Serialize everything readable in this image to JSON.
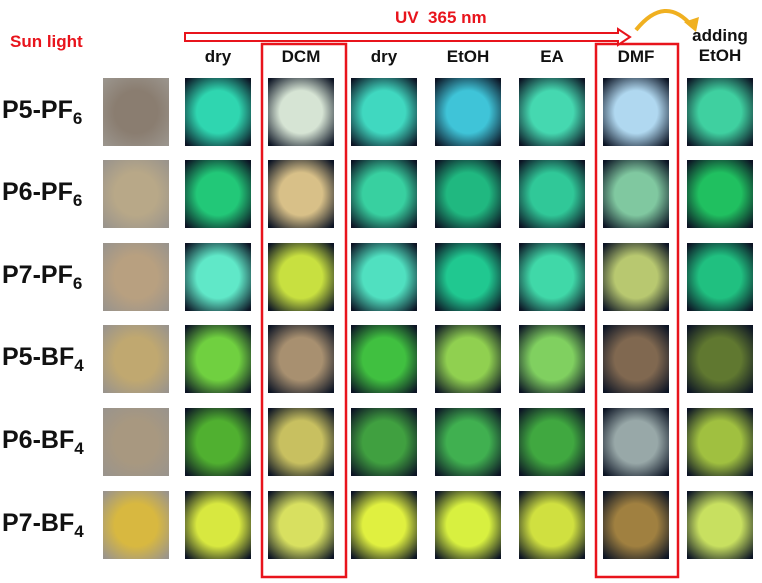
{
  "annotations": {
    "sun_light": "Sun light",
    "uv": "UV  365 nm"
  },
  "columns": [
    {
      "lines": [
        "dry"
      ]
    },
    {
      "lines": [
        "DCM"
      ]
    },
    {
      "lines": [
        "dry"
      ]
    },
    {
      "lines": [
        "EtOH"
      ]
    },
    {
      "lines": [
        "EA"
      ]
    },
    {
      "lines": [
        "DMF"
      ]
    },
    {
      "lines": [
        "adding",
        "EtOH"
      ]
    }
  ],
  "rows": [
    {
      "name": "P5-PF",
      "sub": "6"
    },
    {
      "name": "P6-PF",
      "sub": "6"
    },
    {
      "name": "P7-PF",
      "sub": "6"
    },
    {
      "name": "P5-BF",
      "sub": "4"
    },
    {
      "name": "P6-BF",
      "sub": "4"
    },
    {
      "name": "P7-BF",
      "sub": "4"
    }
  ]
}
